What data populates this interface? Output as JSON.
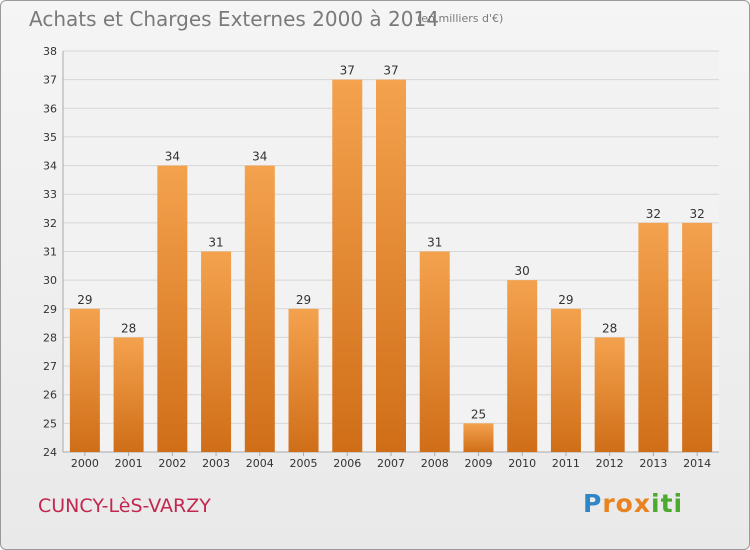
{
  "title": "Achats et Charges Externes 2000 à 2014",
  "subtitle": "(en milliers d'€)",
  "commune": "CUNCY-LèS-VARZY",
  "brand": {
    "letters": [
      "P",
      "r",
      "o",
      "x",
      "i",
      "t",
      "i"
    ],
    "colors": [
      "#2e86c8",
      "#e8831f",
      "#e8831f",
      "#e8831f",
      "#4caa2e",
      "#4caa2e",
      "#4caa2e"
    ]
  },
  "colors": {
    "bar_light": "#f4a24e",
    "bar_dark": "#d06e18",
    "commune": "#c3264f",
    "grid": "#d6d6d6",
    "axis_text": "#333333"
  },
  "chart_data": {
    "type": "bar",
    "categories": [
      "2000",
      "2001",
      "2002",
      "2003",
      "2004",
      "2005",
      "2006",
      "2007",
      "2008",
      "2009",
      "2010",
      "2011",
      "2012",
      "2013",
      "2014"
    ],
    "values": [
      29,
      28,
      34,
      31,
      34,
      29,
      37,
      37,
      31,
      25,
      30,
      29,
      28,
      32,
      32
    ],
    "ylim": [
      24,
      38
    ],
    "yticks": [
      24,
      25,
      26,
      27,
      28,
      29,
      30,
      31,
      32,
      33,
      34,
      35,
      36,
      37,
      38
    ],
    "grid": true,
    "data_labels": true
  }
}
